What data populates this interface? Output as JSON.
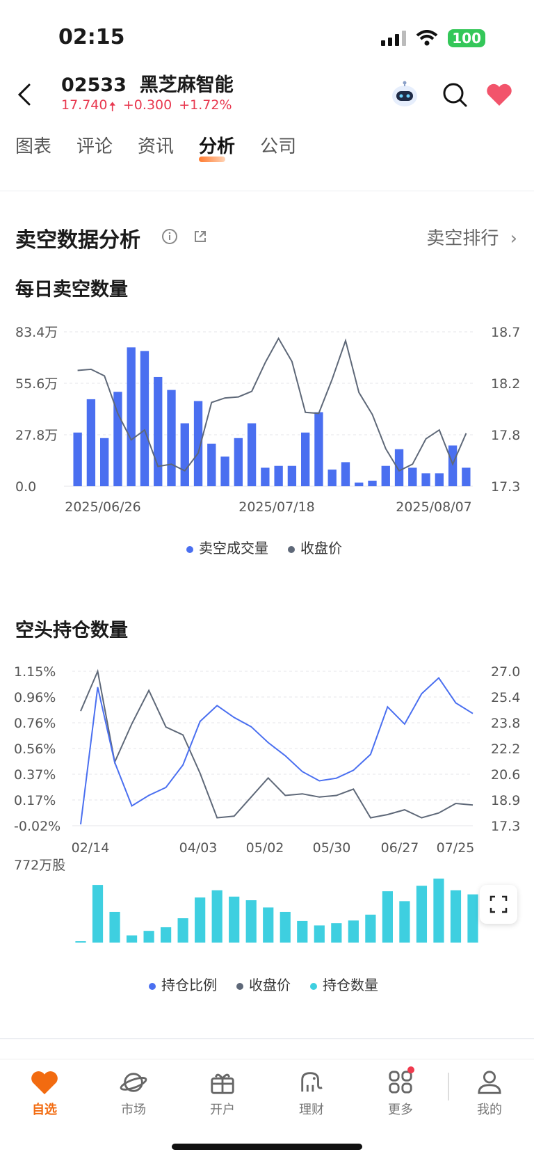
{
  "status": {
    "time": "02:15",
    "battery": "100"
  },
  "header": {
    "code": "02533",
    "name": "黑芝麻智能",
    "price": "17.740",
    "change": "+0.300",
    "change_pct": "+1.72%"
  },
  "tabs": [
    {
      "label": "图表",
      "active": false
    },
    {
      "label": "评论",
      "active": false
    },
    {
      "label": "资讯",
      "active": false
    },
    {
      "label": "分析",
      "active": true
    },
    {
      "label": "公司",
      "active": false
    }
  ],
  "section": {
    "title": "卖空数据分析",
    "rank_link": "卖空排行"
  },
  "chart1": {
    "title": "每日卖空数量"
  },
  "chart2": {
    "title": "空头持仓数量"
  },
  "nav": [
    {
      "label": "自选",
      "icon": "heart-icon",
      "active": true
    },
    {
      "label": "市场",
      "icon": "planet-icon",
      "active": false
    },
    {
      "label": "开户",
      "icon": "gift-icon",
      "active": false
    },
    {
      "label": "理财",
      "icon": "elephant-icon",
      "active": false
    },
    {
      "label": "更多",
      "icon": "grid-icon",
      "active": false
    },
    {
      "label": "我的",
      "icon": "profile-icon",
      "active": false
    }
  ],
  "colors": {
    "accent": "#f26b10",
    "up": "#e8384f",
    "bar_blue": "#4a6ff0",
    "line_gray": "#5e6878",
    "bar_cyan": "#3ecfe0"
  },
  "chart_data": [
    {
      "type": "bar",
      "title": "每日卖空数量",
      "x_tick_labels": [
        "2025/06/26",
        "2025/07/18",
        "2025/08/07"
      ],
      "y_left_ticks": [
        "83.4万",
        "55.6万",
        "27.8万",
        "0.0"
      ],
      "y_right_ticks": [
        "18.7",
        "18.2",
        "17.8",
        "17.3"
      ],
      "ylim_left": [
        0,
        83.4
      ],
      "ylim_right": [
        17.3,
        18.7
      ],
      "series": [
        {
          "name": "卖空成交量",
          "type": "bar",
          "unit": "万",
          "values": [
            29,
            47,
            26,
            51,
            75,
            73,
            59,
            52,
            34,
            46,
            23,
            16,
            26,
            34,
            10,
            11,
            11,
            29,
            40,
            9,
            13,
            2,
            3,
            11,
            20,
            10,
            7,
            7,
            22,
            10
          ]
        },
        {
          "name": "收盘价",
          "type": "line",
          "values": [
            18.35,
            18.36,
            18.3,
            17.96,
            17.72,
            17.81,
            17.48,
            17.5,
            17.44,
            17.6,
            18.06,
            18.1,
            18.11,
            18.16,
            18.42,
            18.64,
            18.43,
            17.97,
            17.96,
            18.27,
            18.62,
            18.15,
            17.95,
            17.64,
            17.44,
            17.5,
            17.73,
            17.81,
            17.5,
            17.78
          ]
        }
      ],
      "grid": true,
      "legend_position": "bottom"
    },
    {
      "type": "line",
      "title": "空头持仓数量",
      "x_tick_labels": [
        "02/14",
        "04/03",
        "05/02",
        "05/30",
        "06/27",
        "07/25"
      ],
      "y_left_ticks": [
        "1.15%",
        "0.96%",
        "0.76%",
        "0.56%",
        "0.37%",
        "0.17%",
        "-0.02%"
      ],
      "y_right_ticks": [
        "27.0",
        "25.4",
        "23.8",
        "22.2",
        "20.6",
        "18.9",
        "17.3"
      ],
      "ylim_left": [
        -0.02,
        1.15
      ],
      "ylim_right": [
        17.3,
        27.0
      ],
      "bar_axis_max_label": "772万股",
      "series": [
        {
          "name": "持仓比例",
          "type": "line",
          "unit": "%",
          "values": [
            -0.01,
            1.03,
            0.46,
            0.13,
            0.21,
            0.27,
            0.44,
            0.77,
            0.89,
            0.8,
            0.73,
            0.61,
            0.51,
            0.39,
            0.32,
            0.34,
            0.4,
            0.52,
            0.88,
            0.75,
            0.98,
            1.1,
            0.91,
            0.83
          ]
        },
        {
          "name": "收盘价",
          "type": "line",
          "values": [
            24.5,
            27.0,
            21.3,
            23.7,
            25.8,
            23.5,
            23.0,
            20.6,
            17.8,
            17.9,
            19.1,
            20.3,
            19.2,
            19.3,
            19.1,
            19.2,
            19.6,
            17.8,
            18.0,
            18.3,
            17.8,
            18.1,
            18.7,
            18.6
          ]
        },
        {
          "name": "持仓数量",
          "type": "bar",
          "unit": "万股",
          "values": [
            15,
            640,
            340,
            80,
            130,
            170,
            270,
            500,
            580,
            510,
            470,
            390,
            340,
            240,
            190,
            215,
            245,
            310,
            570,
            460,
            630,
            710,
            580,
            535
          ]
        }
      ],
      "grid": true,
      "legend_position": "bottom"
    }
  ]
}
